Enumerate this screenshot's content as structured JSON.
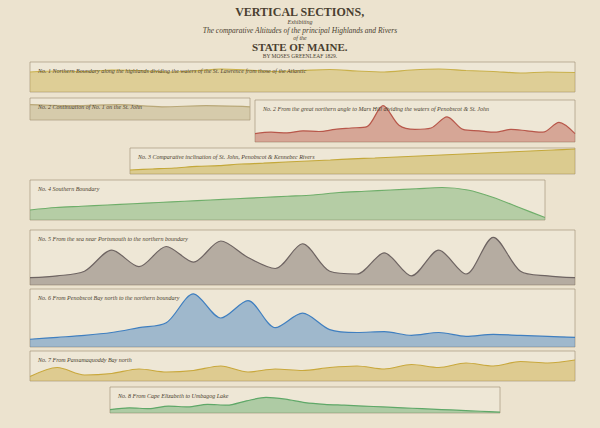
{
  "heading": [
    "VERTICAL SECTIONS,",
    "Exhibiting",
    "The comparative Altitudes of the principal Highlands and Rivers",
    "of the",
    "STATE OF MAINE.",
    "BY MOSES GREENLEAF 1829."
  ],
  "chart_data": [
    {
      "type": "line",
      "title": "No. 1 Northern Boundary along the highlands dividing the waters of the St. Lawrence from those of the Atlantic",
      "x": [
        0,
        5,
        10,
        15,
        20,
        25,
        30,
        35,
        40,
        45,
        50,
        55,
        60,
        65,
        70,
        75,
        80,
        85,
        90,
        95,
        100
      ],
      "values": [
        2000,
        2100,
        2050,
        2200,
        2150,
        2000,
        2100,
        2300,
        2200,
        2050,
        2150,
        2250,
        2100,
        2000,
        2200,
        2300,
        2150,
        2050,
        1900,
        2000,
        1950
      ],
      "xlim": [
        0,
        100
      ],
      "ylim": [
        0,
        3000
      ],
      "color": "#c9b04a",
      "tick_labels": false
    },
    {
      "type": "line",
      "title": "No. 2 Continuation of No. 1 on the St. John",
      "x": [
        0,
        20,
        40,
        60,
        80,
        100
      ],
      "values": [
        700,
        650,
        700,
        600,
        650,
        600
      ],
      "xlim": [
        0,
        100
      ],
      "ylim": [
        0,
        1000
      ],
      "color": "#b9a878",
      "tick_labels": false
    },
    {
      "type": "line",
      "title": "No. 2 From the great northern angle to Mars Hill dividing the waters of Penobscot & St. John",
      "x": [
        0,
        5,
        10,
        15,
        20,
        25,
        30,
        35,
        40,
        45,
        50,
        55,
        60,
        65,
        70,
        75,
        80,
        85,
        90,
        95,
        100
      ],
      "values": [
        600,
        700,
        650,
        800,
        750,
        900,
        1000,
        1100,
        2600,
        1200,
        900,
        1000,
        1800,
        900,
        800,
        700,
        900,
        800,
        700,
        1400,
        600
      ],
      "xlim": [
        0,
        100
      ],
      "ylim": [
        0,
        3000
      ],
      "color": "#b8574a",
      "tick_labels": false
    },
    {
      "type": "line",
      "title": "No. 3 Comparative inclination of St. John, Penobscot & Kennebec Rivers",
      "x": [
        0,
        5,
        10,
        15,
        20,
        25,
        30,
        35,
        40,
        45,
        50,
        55,
        60,
        65,
        70,
        75,
        80,
        85,
        90,
        95,
        100
      ],
      "values": [
        200,
        250,
        300,
        380,
        420,
        500,
        540,
        600,
        650,
        700,
        760,
        800,
        850,
        900,
        950,
        1000,
        1050,
        1100,
        1150,
        1200,
        1250
      ],
      "xlim": [
        0,
        100
      ],
      "ylim": [
        0,
        1300
      ],
      "color": "#c4a83a",
      "tick_labels": false
    },
    {
      "type": "line",
      "title": "No. 4 Southern Boundary",
      "x": [
        0,
        5,
        10,
        15,
        20,
        25,
        30,
        35,
        40,
        45,
        50,
        55,
        60,
        65,
        70,
        75,
        80,
        85,
        90,
        95,
        100
      ],
      "values": [
        400,
        500,
        550,
        600,
        650,
        700,
        750,
        800,
        850,
        900,
        950,
        1000,
        1100,
        1150,
        1200,
        1250,
        1300,
        1200,
        900,
        500,
        100
      ],
      "xlim": [
        0,
        100
      ],
      "ylim": [
        0,
        1600
      ],
      "color": "#6fae6a",
      "tick_labels": false
    },
    {
      "type": "line",
      "title": "No. 5 From the sea near Portsmouth to the northern boundary",
      "x": [
        0,
        5,
        10,
        15,
        20,
        25,
        30,
        35,
        40,
        45,
        50,
        55,
        60,
        65,
        70,
        75,
        80,
        85,
        90,
        95,
        100
      ],
      "values": [
        800,
        1000,
        1500,
        3800,
        2000,
        4200,
        2500,
        4800,
        3000,
        1800,
        4500,
        1500,
        1200,
        3500,
        1000,
        3800,
        1200,
        5200,
        1500,
        1000,
        800
      ],
      "xlim": [
        0,
        100
      ],
      "ylim": [
        0,
        6000
      ],
      "color": "#6e6462",
      "tick_labels": false
    },
    {
      "type": "line",
      "title": "No. 6 From Penobscot Bay north to the northern boundary",
      "x": [
        0,
        5,
        10,
        15,
        20,
        25,
        30,
        35,
        40,
        45,
        50,
        55,
        60,
        65,
        70,
        75,
        80,
        85,
        90,
        95,
        100
      ],
      "values": [
        800,
        1000,
        1200,
        1500,
        2000,
        2500,
        5500,
        3000,
        4800,
        2000,
        3500,
        1800,
        1500,
        1600,
        1200,
        1500,
        1100,
        1300,
        1200,
        1100,
        1000
      ],
      "xlim": [
        0,
        100
      ],
      "ylim": [
        0,
        6000
      ],
      "color": "#3f7fc0",
      "tick_labels": false
    },
    {
      "type": "line",
      "title": "No. 7 From Passamaquoddy Bay north",
      "x": [
        0,
        5,
        10,
        15,
        20,
        25,
        30,
        35,
        40,
        45,
        50,
        55,
        60,
        65,
        70,
        75,
        80,
        85,
        90,
        95,
        100
      ],
      "values": [
        300,
        900,
        400,
        500,
        800,
        600,
        700,
        1000,
        600,
        800,
        700,
        900,
        1000,
        800,
        1100,
        900,
        1200,
        1000,
        1300,
        1200,
        1400
      ],
      "xlim": [
        0,
        100
      ],
      "ylim": [
        0,
        2000
      ],
      "color": "#c9a83c",
      "tick_labels": false
    },
    {
      "type": "line",
      "title": "No. 8 From Cape Elizabeth to Umbagog Lake",
      "x": [
        0,
        5,
        10,
        15,
        20,
        25,
        30,
        35,
        40,
        45,
        50,
        55,
        60,
        65,
        70,
        75,
        80,
        85,
        90,
        95,
        100
      ],
      "values": [
        200,
        300,
        250,
        400,
        350,
        500,
        450,
        700,
        900,
        800,
        600,
        500,
        450,
        400,
        350,
        300,
        250,
        200,
        150,
        100,
        50
      ],
      "xlim": [
        0,
        100
      ],
      "ylim": [
        0,
        1500
      ],
      "color": "#5fa868",
      "tick_labels": false
    }
  ]
}
